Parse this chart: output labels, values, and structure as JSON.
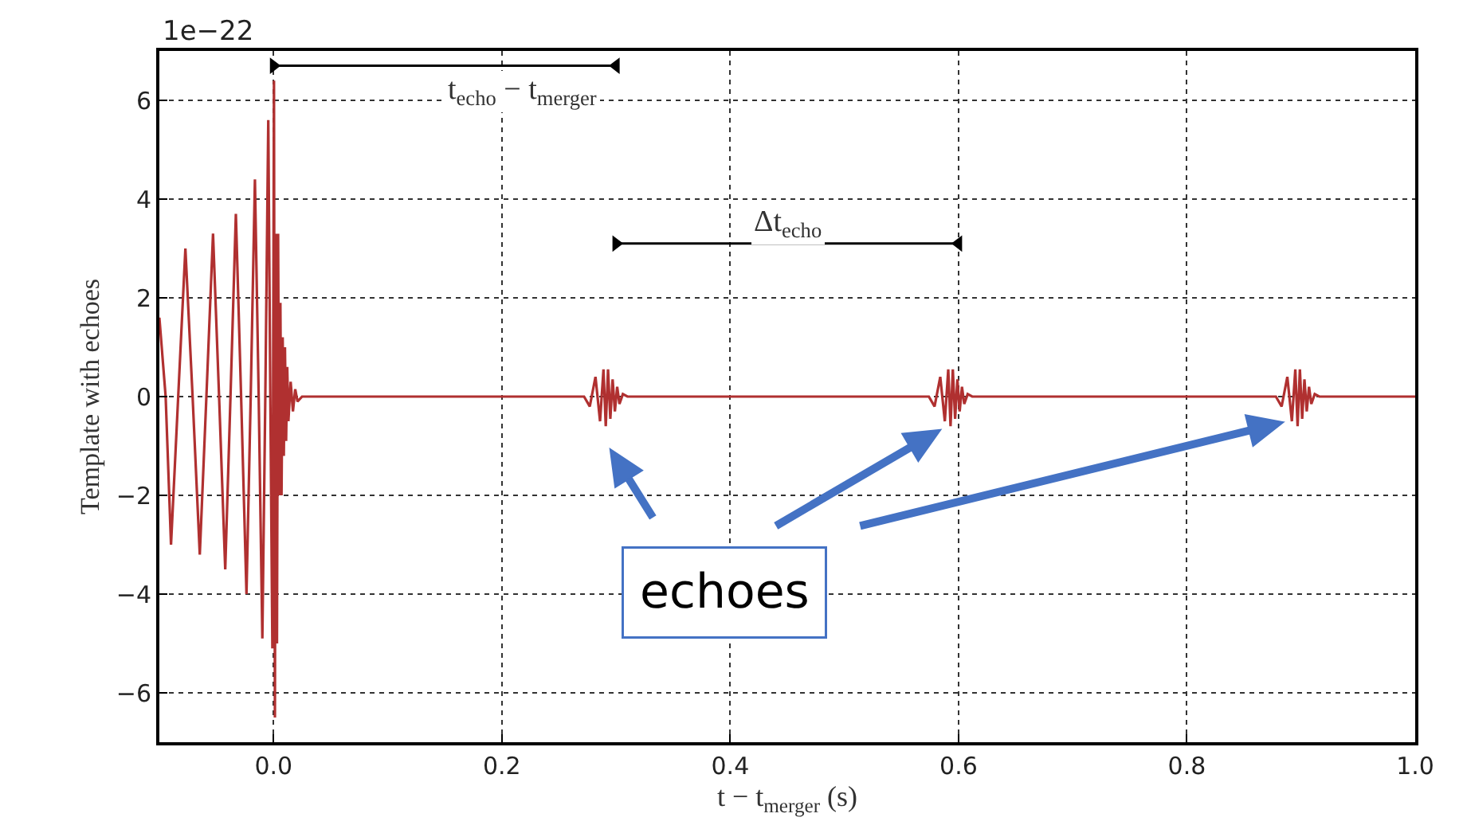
{
  "chart_data": {
    "type": "line",
    "xlabel": "t − t$_{merger}$ (s)",
    "ylabel": "Template with echoes",
    "xlim": [
      -0.1,
      1.0
    ],
    "ylim": [
      -7,
      7
    ],
    "xticks": [
      {
        "value": 0,
        "label": "0.0"
      },
      {
        "value": 0.2,
        "label": "0.2"
      },
      {
        "value": 0.4,
        "label": "0.4"
      },
      {
        "value": 0.6,
        "label": "0.6"
      },
      {
        "value": 0.8,
        "label": "0.8"
      },
      {
        "value": 1.0,
        "label": "1.0"
      }
    ],
    "yticks": [
      {
        "value": -6,
        "label": "−6"
      },
      {
        "value": -4,
        "label": "−4"
      },
      {
        "value": -2,
        "label": "−2"
      },
      0,
      2,
      4,
      6
    ],
    "grid": true,
    "series": [
      {
        "color": "#b03030",
        "x": [
          -0.1,
          -0.0945,
          -0.0898,
          -0.0835,
          -0.0772,
          -0.0709,
          -0.0646,
          -0.0588,
          -0.053,
          -0.0477,
          -0.0423,
          -0.0377,
          -0.033,
          -0.0284,
          -0.0237,
          -0.02,
          -0.0163,
          -0.013,
          -0.0098,
          -0.0072,
          -0.0046,
          -0.0028,
          -0.001,
          0.0004,
          0.0012,
          0.002,
          0.003,
          0.004,
          0.005,
          0.006,
          0.007,
          0.008,
          0.009,
          0.01,
          0.011,
          0.012,
          0.013,
          0.015,
          0.017,
          0.019,
          0.021,
          0.025,
          0.272,
          0.277,
          0.282,
          0.286,
          0.289,
          0.291,
          0.293,
          0.295,
          0.297,
          0.299,
          0.301,
          0.303,
          0.306,
          0.31,
          0.574,
          0.579,
          0.584,
          0.588,
          0.591,
          0.593,
          0.595,
          0.597,
          0.599,
          0.601,
          0.603,
          0.605,
          0.608,
          0.612,
          0.878,
          0.883,
          0.888,
          0.892,
          0.895,
          0.897,
          0.899,
          0.901,
          0.903,
          0.905,
          0.907,
          0.909,
          0.912,
          0.916,
          1.0
        ],
        "values": [
          1.6,
          0,
          -3.0,
          0,
          3.0,
          0,
          -3.2,
          0,
          3.3,
          0,
          -3.5,
          0,
          3.7,
          0,
          -4.0,
          0,
          4.4,
          0,
          -4.9,
          0,
          5.6,
          0,
          -5.1,
          6.4,
          -6.5,
          3.3,
          -5.0,
          3.3,
          -2.0,
          1.9,
          -2.0,
          1.2,
          -1.2,
          1.0,
          -0.9,
          0.6,
          -0.5,
          0.3,
          -0.3,
          0.15,
          -0.1,
          0,
          0,
          -0.2,
          0.4,
          -0.5,
          0.55,
          -0.6,
          0.55,
          -0.45,
          0.35,
          -0.3,
          0.2,
          -0.15,
          0.05,
          0,
          0,
          -0.2,
          0.4,
          -0.5,
          0.55,
          -0.6,
          0.55,
          -0.45,
          0.35,
          -0.3,
          0.2,
          -0.15,
          0.05,
          0,
          0,
          -0.2,
          0.4,
          -0.5,
          0.55,
          -0.6,
          0.55,
          -0.45,
          0.35,
          -0.3,
          0.2,
          -0.15,
          0.05,
          0,
          0
        ]
      },
      {
        "color": "#000000",
        "marker": "triangle",
        "x": [
          0,
          0.3
        ],
        "values": [
          6.7,
          6.7
        ]
      },
      {
        "color": "#000000",
        "marker": "triangle",
        "x": [
          0.3,
          0.6
        ],
        "values": [
          3.1,
          3.1
        ]
      }
    ],
    "annotations": [
      "1e−22",
      "t$_{echo}$ − t$_{merger}$",
      "Δt$_{echo}$",
      "echoes"
    ]
  }
}
